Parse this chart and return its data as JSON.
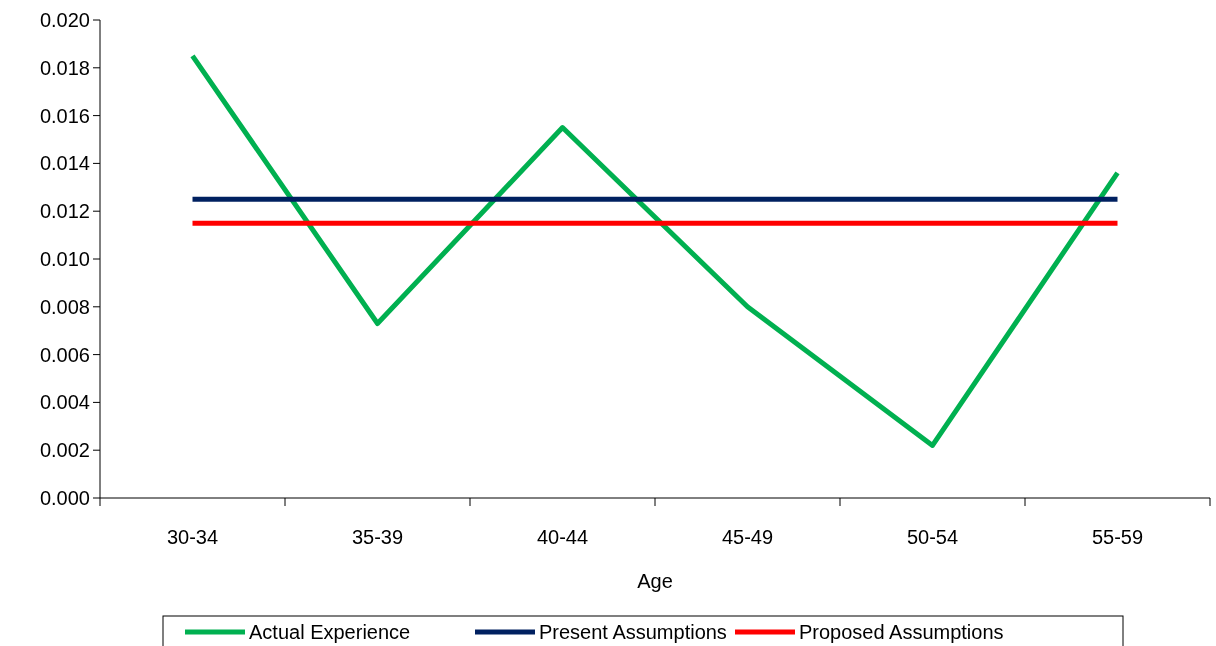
{
  "chart_data": {
    "type": "line",
    "xlabel": "Age",
    "categories": [
      "30-34",
      "35-39",
      "40-44",
      "45-49",
      "50-54",
      "55-59"
    ],
    "series": [
      {
        "name": "Actual Experience",
        "color": "#00b050",
        "values": [
          0.0185,
          0.0073,
          0.0155,
          0.008,
          0.0022,
          0.0136
        ]
      },
      {
        "name": "Present Assumptions",
        "color": "#002060",
        "values": [
          0.0125,
          0.0125,
          0.0125,
          0.0125,
          0.0125,
          0.0125
        ]
      },
      {
        "name": "Proposed Assumptions",
        "color": "#ff0000",
        "values": [
          0.0115,
          0.0115,
          0.0115,
          0.0115,
          0.0115,
          0.0115
        ]
      }
    ],
    "ylim": [
      0,
      0.02
    ],
    "yticks": [
      {
        "value": 0,
        "label": "0.000"
      },
      {
        "value": 0.002,
        "label": "0.002"
      },
      {
        "value": 0.004,
        "label": "0.004"
      },
      {
        "value": 0.006,
        "label": "0.006"
      },
      {
        "value": 0.008,
        "label": "0.008"
      },
      {
        "value": 0.01,
        "label": "0.010"
      },
      {
        "value": 0.012,
        "label": "0.012"
      },
      {
        "value": 0.014,
        "label": "0.014"
      },
      {
        "value": 0.016,
        "label": "0.016"
      },
      {
        "value": 0.018,
        "label": "0.018"
      },
      {
        "value": 0.02,
        "label": "0.020"
      }
    ],
    "grid": false,
    "legend": "bottom",
    "marker": "none",
    "line_style": "solid"
  }
}
